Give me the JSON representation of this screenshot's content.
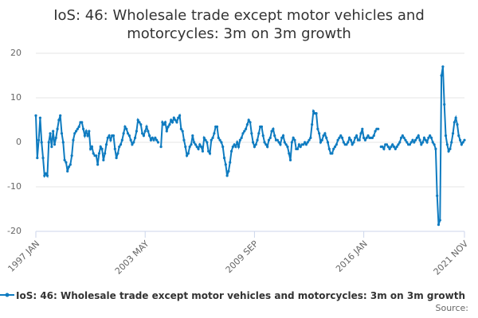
{
  "chart_data": {
    "type": "line",
    "title": "IoS: 46: Wholesale trade except motor vehicles and motorcycles: 3m on 3m growth",
    "source": "Source:",
    "categories": [
      "1997 JAN",
      null,
      null,
      null,
      null,
      null,
      null,
      null,
      null,
      null,
      null,
      null,
      null,
      null,
      null,
      null,
      null,
      null,
      null,
      null,
      null,
      null,
      null,
      null,
      null,
      null,
      null,
      null,
      null,
      null,
      null,
      null,
      null,
      null,
      null,
      null,
      null,
      null,
      null,
      null,
      null,
      null,
      null,
      null,
      null,
      null,
      null,
      null,
      null,
      null,
      null,
      null,
      null,
      null,
      null,
      null,
      null,
      null,
      null,
      null,
      null,
      null,
      null,
      null,
      null,
      null,
      null,
      null,
      null,
      null,
      null,
      null,
      null,
      null,
      null,
      null,
      "2003 MAY",
      null,
      null,
      null,
      null,
      null,
      null,
      null,
      null,
      null,
      null,
      null,
      null,
      null,
      null,
      null,
      null,
      null,
      null,
      null,
      null,
      null,
      null,
      null,
      null,
      null,
      null,
      null,
      null,
      null,
      null,
      null,
      null,
      null,
      null,
      null,
      null,
      null,
      null,
      null,
      null,
      null,
      null,
      null,
      null,
      null,
      null,
      null,
      null,
      null,
      null,
      null,
      null,
      null,
      null,
      null,
      null,
      null,
      null,
      null,
      null,
      null,
      null,
      null,
      null,
      null,
      null,
      null,
      null,
      null,
      null,
      null,
      null,
      null,
      null,
      null,
      "2009 SEP",
      null,
      null,
      null,
      null,
      null,
      null,
      null,
      null,
      null,
      null,
      null,
      null,
      null,
      null,
      null,
      null,
      null,
      null,
      null,
      null,
      null,
      null,
      null,
      null,
      null,
      null,
      null,
      null,
      null,
      null,
      null,
      null,
      null,
      null,
      null,
      null,
      null,
      null,
      null,
      null,
      null,
      null,
      null,
      null,
      null,
      null,
      null,
      null,
      null,
      null,
      null,
      null,
      null,
      null,
      null,
      null,
      null,
      null,
      null,
      null,
      null,
      null,
      null,
      null,
      null,
      null,
      null,
      null,
      null,
      null,
      null,
      null,
      null,
      null,
      null,
      "2016 JAN",
      null,
      null,
      null,
      null,
      null,
      null,
      null,
      null,
      null,
      null,
      null,
      null,
      null,
      null,
      null,
      null,
      null,
      null,
      null,
      null,
      null,
      null,
      null,
      null,
      null,
      null,
      null,
      null,
      null,
      null,
      null,
      null,
      null,
      null,
      null,
      null,
      null,
      null,
      null,
      null,
      null,
      null,
      null,
      null,
      null,
      null,
      null,
      null,
      null,
      null,
      null,
      null,
      null,
      null,
      null,
      null,
      null,
      null,
      null,
      null,
      null,
      null,
      null,
      null,
      null,
      null,
      null,
      null,
      null,
      "2021 NOV"
    ],
    "series": [
      {
        "name": "IoS: 46: Wholesale trade except motor vehicles and motorcycles: 3m on 3m growth",
        "color": "#0e7bc0",
        "values": [
          6,
          -3.5,
          0.5,
          5.5,
          0,
          -3.5,
          -7.5,
          -7,
          -7.5,
          0,
          2,
          -1,
          2.5,
          -0.5,
          1,
          3,
          5,
          6,
          2,
          0,
          -4,
          -4.5,
          -6.5,
          -5.5,
          -5,
          -3,
          0.5,
          2,
          2.5,
          3,
          3.5,
          4.5,
          4.5,
          3,
          1.5,
          2.5,
          1.5,
          2.5,
          -1.5,
          -1,
          -2.5,
          -3,
          -3,
          -5,
          -2.5,
          -1,
          -1.5,
          -4,
          -2.5,
          -0.5,
          1,
          1.5,
          0.5,
          1.5,
          1.5,
          -1.5,
          -3.5,
          -2.5,
          -1,
          -0.5,
          0.5,
          2,
          3.5,
          3,
          2,
          1.5,
          0.5,
          -0.5,
          0,
          1,
          2.5,
          5,
          4.5,
          4,
          2,
          1.5,
          2.5,
          3.5,
          2.5,
          1.5,
          0.5,
          1,
          0.5,
          1,
          0.5,
          0,
          null,
          -1,
          4.5,
          4,
          4.5,
          2.5,
          3.5,
          4,
          5,
          4.5,
          5.5,
          5,
          4.5,
          5.5,
          6,
          3,
          2.5,
          0.5,
          -1,
          -3,
          -2.5,
          -1,
          -0.5,
          1.5,
          0,
          -0.5,
          -1,
          -1.5,
          -0.5,
          -1,
          -2,
          1,
          0.5,
          0,
          -2,
          -2.5,
          0.5,
          1,
          2,
          3.5,
          3.5,
          1,
          0.5,
          0,
          -1,
          -3.5,
          -5,
          -7.5,
          -6.5,
          -4.5,
          -2,
          -1,
          -0.5,
          -1,
          0,
          -1,
          0.5,
          1,
          2,
          2.5,
          3,
          4,
          5,
          4.5,
          2,
          0,
          -1,
          -0.5,
          0.5,
          2,
          3.5,
          3.5,
          1.5,
          0,
          -0.5,
          -1,
          0.5,
          1,
          2.5,
          3,
          1.5,
          0.5,
          0.5,
          0,
          -0.5,
          1,
          1.5,
          0,
          -0.5,
          -1,
          -2.5,
          -4,
          0,
          1,
          0.5,
          -1.5,
          -1.5,
          -0.5,
          -1,
          -0.5,
          -0.5,
          0,
          -0.5,
          0,
          0.5,
          1,
          4,
          7,
          6.5,
          6.5,
          3,
          2,
          0,
          0.5,
          1.5,
          2,
          1,
          0,
          -1.5,
          -2.5,
          -2.5,
          -1.5,
          -1,
          -0.5,
          0.5,
          1,
          1.5,
          1,
          0,
          -0.5,
          -0.5,
          0,
          1,
          0.5,
          -0.5,
          0,
          1,
          1.5,
          0.5,
          0.5,
          2,
          3,
          1,
          0.5,
          1,
          1.5,
          1,
          1,
          1,
          1.5,
          2.5,
          3,
          3,
          null,
          -1,
          -1,
          -1.5,
          -0.5,
          -0.5,
          -1,
          -1.5,
          -1,
          -0.5,
          -1,
          -1.5,
          -1,
          -0.5,
          0,
          1,
          1.5,
          1,
          0.5,
          0,
          -0.5,
          -0.5,
          0,
          0.5,
          0,
          0.5,
          1,
          1.5,
          0.5,
          -0.5,
          0,
          1,
          0.5,
          0,
          1,
          1.5,
          1,
          0,
          -0.5,
          -1.5,
          -12,
          -18.5,
          -17.5,
          15,
          17,
          8.5,
          1.5,
          -0.5,
          -2,
          -1.5,
          0,
          2,
          4.5,
          5.5,
          4,
          1.5,
          0.5,
          -0.5,
          0,
          0.5
        ]
      }
    ],
    "ylim": [
      -20,
      20
    ],
    "yticks": [
      -20,
      -10,
      0,
      10,
      20
    ],
    "grid": true
  }
}
